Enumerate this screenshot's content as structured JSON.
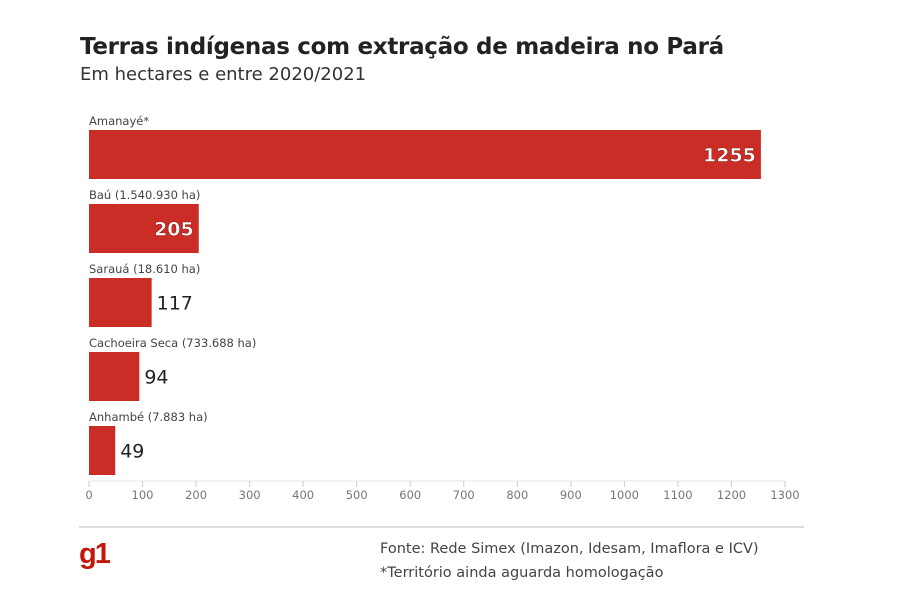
{
  "chart_data": {
    "type": "bar",
    "orientation": "horizontal",
    "title": "Terras indígenas com extração de madeira no Pará",
    "subtitle": "Em hectares e entre 2020/2021",
    "categories": [
      "Amanayé*",
      "Baú (1.540.930 ha)",
      "Sarauá (18.610 ha)",
      "Cachoeira Seca (733.688 ha)",
      "Anhambé (7.883 ha)"
    ],
    "values": [
      1255,
      205,
      117,
      94,
      49
    ],
    "xlim": [
      0,
      1300
    ],
    "xticks": [
      0,
      100,
      200,
      300,
      400,
      500,
      600,
      700,
      800,
      900,
      1000,
      1100,
      1200,
      1300
    ],
    "xlabel": "",
    "ylabel": "",
    "bar_color": "#c92d25"
  },
  "footer": {
    "logo": "g1",
    "source": "Fonte: Rede Simex (Imazon, Idesam, Imaflora e ICV)",
    "note": "*Território ainda aguarda homologação"
  }
}
